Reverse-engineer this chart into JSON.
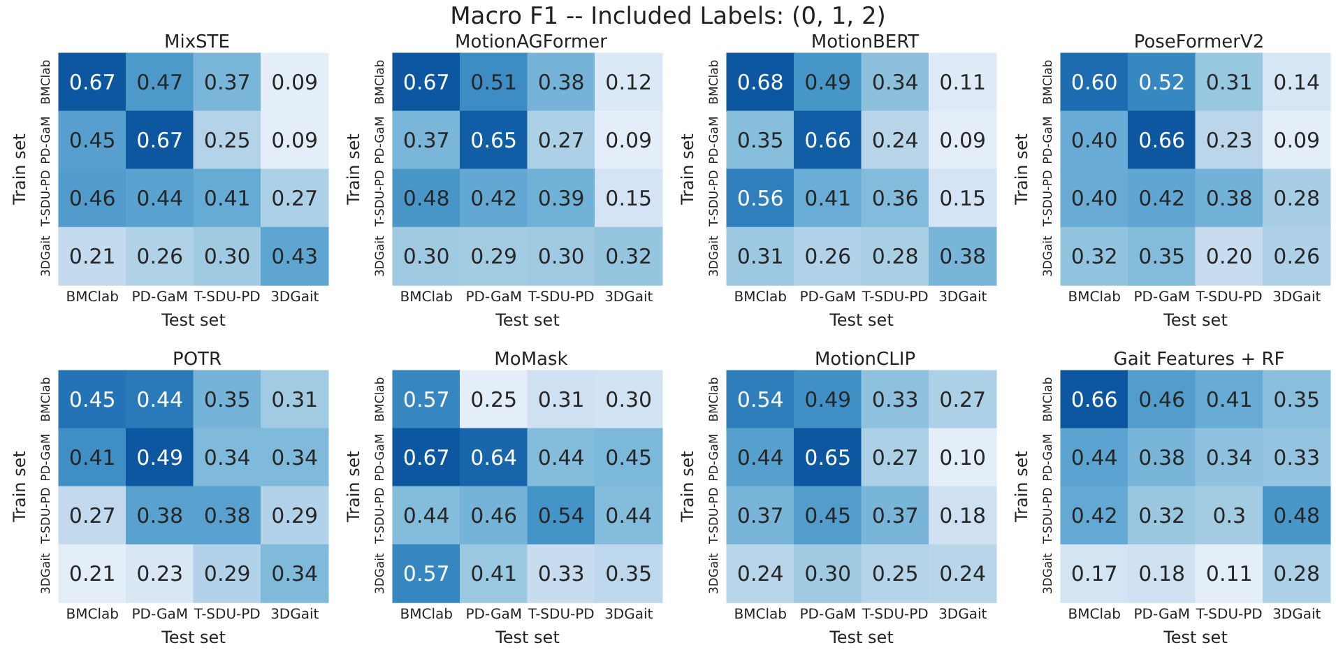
{
  "chart_data": [
    {
      "type": "other",
      "title": "Macro F1 -- Included Labels: (0, 1, 2)"
    },
    {
      "type": "heatmap",
      "title": "MixSTE",
      "xlabel": "Test set",
      "ylabel": "Train set",
      "categories": [
        "BMClab",
        "PD-GaM",
        "T-SDU-PD",
        "3DGait"
      ],
      "y_categories": [
        "BMClab",
        "PD-GaM",
        "T-SDU-PD",
        "3DGait"
      ],
      "data_labels": true,
      "cells": [
        [
          0.67,
          0.47,
          0.37,
          0.09
        ],
        [
          0.45,
          0.67,
          0.25,
          0.09
        ],
        [
          0.46,
          0.44,
          0.41,
          0.27
        ],
        [
          0.21,
          0.26,
          0.3,
          0.43
        ]
      ],
      "cell_labels": [
        [
          "0.67",
          "0.47",
          "0.37",
          "0.09"
        ],
        [
          "0.45",
          "0.67",
          "0.25",
          "0.09"
        ],
        [
          "0.46",
          "0.44",
          "0.41",
          "0.27"
        ],
        [
          "0.21",
          "0.26",
          "0.30",
          "0.43"
        ]
      ]
    },
    {
      "type": "heatmap",
      "title": "MotionAGFormer",
      "xlabel": "Test set",
      "ylabel": "Train set",
      "categories": [
        "BMClab",
        "PD-GaM",
        "T-SDU-PD",
        "3DGait"
      ],
      "y_categories": [
        "BMClab",
        "PD-GaM",
        "T-SDU-PD",
        "3DGait"
      ],
      "data_labels": true,
      "cells": [
        [
          0.67,
          0.51,
          0.38,
          0.12
        ],
        [
          0.37,
          0.65,
          0.27,
          0.09
        ],
        [
          0.48,
          0.42,
          0.39,
          0.15
        ],
        [
          0.3,
          0.29,
          0.3,
          0.32
        ]
      ],
      "cell_labels": [
        [
          "0.67",
          "0.51",
          "0.38",
          "0.12"
        ],
        [
          "0.37",
          "0.65",
          "0.27",
          "0.09"
        ],
        [
          "0.48",
          "0.42",
          "0.39",
          "0.15"
        ],
        [
          "0.30",
          "0.29",
          "0.30",
          "0.32"
        ]
      ]
    },
    {
      "type": "heatmap",
      "title": "MotionBERT",
      "xlabel": "Test set",
      "ylabel": "Train set",
      "categories": [
        "BMClab",
        "PD-GaM",
        "T-SDU-PD",
        "3DGait"
      ],
      "y_categories": [
        "BMClab",
        "PD-GaM",
        "T-SDU-PD",
        "3DGait"
      ],
      "data_labels": true,
      "cells": [
        [
          0.68,
          0.49,
          0.34,
          0.11
        ],
        [
          0.35,
          0.66,
          0.24,
          0.09
        ],
        [
          0.56,
          0.41,
          0.36,
          0.15
        ],
        [
          0.31,
          0.26,
          0.28,
          0.38
        ]
      ],
      "cell_labels": [
        [
          "0.68",
          "0.49",
          "0.34",
          "0.11"
        ],
        [
          "0.35",
          "0.66",
          "0.24",
          "0.09"
        ],
        [
          "0.56",
          "0.41",
          "0.36",
          "0.15"
        ],
        [
          "0.31",
          "0.26",
          "0.28",
          "0.38"
        ]
      ]
    },
    {
      "type": "heatmap",
      "title": "PoseFormerV2",
      "xlabel": "Test set",
      "ylabel": "Train set",
      "categories": [
        "BMClab",
        "PD-GaM",
        "T-SDU-PD",
        "3DGait"
      ],
      "y_categories": [
        "BMClab",
        "PD-GaM",
        "T-SDU-PD",
        "3DGait"
      ],
      "data_labels": true,
      "cells": [
        [
          0.6,
          0.52,
          0.31,
          0.14
        ],
        [
          0.4,
          0.66,
          0.23,
          0.09
        ],
        [
          0.4,
          0.42,
          0.38,
          0.28
        ],
        [
          0.32,
          0.35,
          0.2,
          0.26
        ]
      ],
      "cell_labels": [
        [
          "0.60",
          "0.52",
          "0.31",
          "0.14"
        ],
        [
          "0.40",
          "0.66",
          "0.23",
          "0.09"
        ],
        [
          "0.40",
          "0.42",
          "0.38",
          "0.28"
        ],
        [
          "0.32",
          "0.35",
          "0.20",
          "0.26"
        ]
      ]
    },
    {
      "type": "heatmap",
      "title": "POTR",
      "xlabel": "Test set",
      "ylabel": "Train set",
      "categories": [
        "BMClab",
        "PD-GaM",
        "T-SDU-PD",
        "3DGait"
      ],
      "y_categories": [
        "BMClab",
        "PD-GaM",
        "T-SDU-PD",
        "3DGait"
      ],
      "data_labels": true,
      "cells": [
        [
          0.45,
          0.44,
          0.35,
          0.31
        ],
        [
          0.41,
          0.49,
          0.34,
          0.34
        ],
        [
          0.27,
          0.38,
          0.38,
          0.29
        ],
        [
          0.21,
          0.23,
          0.29,
          0.34
        ]
      ],
      "cell_labels": [
        [
          "0.45",
          "0.44",
          "0.35",
          "0.31"
        ],
        [
          "0.41",
          "0.49",
          "0.34",
          "0.34"
        ],
        [
          "0.27",
          "0.38",
          "0.38",
          "0.29"
        ],
        [
          "0.21",
          "0.23",
          "0.29",
          "0.34"
        ]
      ]
    },
    {
      "type": "heatmap",
      "title": "MoMask",
      "xlabel": "Test set",
      "ylabel": "Train set",
      "categories": [
        "BMClab",
        "PD-GaM",
        "T-SDU-PD",
        "3DGait"
      ],
      "y_categories": [
        "BMClab",
        "PD-GaM",
        "T-SDU-PD",
        "3DGait"
      ],
      "data_labels": true,
      "cells": [
        [
          0.57,
          0.25,
          0.31,
          0.3
        ],
        [
          0.67,
          0.64,
          0.44,
          0.45
        ],
        [
          0.44,
          0.46,
          0.54,
          0.44
        ],
        [
          0.57,
          0.41,
          0.33,
          0.35
        ]
      ],
      "cell_labels": [
        [
          "0.57",
          "0.25",
          "0.31",
          "0.30"
        ],
        [
          "0.67",
          "0.64",
          "0.44",
          "0.45"
        ],
        [
          "0.44",
          "0.46",
          "0.54",
          "0.44"
        ],
        [
          "0.57",
          "0.41",
          "0.33",
          "0.35"
        ]
      ]
    },
    {
      "type": "heatmap",
      "title": "MotionCLIP",
      "xlabel": "Test set",
      "ylabel": "Train set",
      "categories": [
        "BMClab",
        "PD-GaM",
        "T-SDU-PD",
        "3DGait"
      ],
      "y_categories": [
        "BMClab",
        "PD-GaM",
        "T-SDU-PD",
        "3DGait"
      ],
      "data_labels": true,
      "cells": [
        [
          0.54,
          0.49,
          0.33,
          0.27
        ],
        [
          0.44,
          0.65,
          0.27,
          0.1
        ],
        [
          0.37,
          0.45,
          0.37,
          0.18
        ],
        [
          0.24,
          0.3,
          0.25,
          0.24
        ]
      ],
      "cell_labels": [
        [
          "0.54",
          "0.49",
          "0.33",
          "0.27"
        ],
        [
          "0.44",
          "0.65",
          "0.27",
          "0.10"
        ],
        [
          "0.37",
          "0.45",
          "0.37",
          "0.18"
        ],
        [
          "0.24",
          "0.30",
          "0.25",
          "0.24"
        ]
      ]
    },
    {
      "type": "heatmap",
      "title": "Gait Features + RF",
      "xlabel": "Test set",
      "ylabel": "Train set",
      "categories": [
        "BMClab",
        "PD-GaM",
        "T-SDU-PD",
        "3DGait"
      ],
      "y_categories": [
        "BMClab",
        "PD-GaM",
        "T-SDU-PD",
        "3DGait"
      ],
      "data_labels": true,
      "cells": [
        [
          0.66,
          0.46,
          0.41,
          0.35
        ],
        [
          0.44,
          0.38,
          0.34,
          0.33
        ],
        [
          0.42,
          0.32,
          0.3,
          0.48
        ],
        [
          0.17,
          0.18,
          0.11,
          0.28
        ]
      ],
      "cell_labels": [
        [
          "0.66",
          "0.46",
          "0.41",
          "0.35"
        ],
        [
          "0.44",
          "0.38",
          "0.34",
          "0.33"
        ],
        [
          "0.42",
          "0.32",
          "0.3",
          "0.48"
        ],
        [
          "0.17",
          "0.18",
          "0.11",
          "0.28"
        ]
      ]
    }
  ]
}
